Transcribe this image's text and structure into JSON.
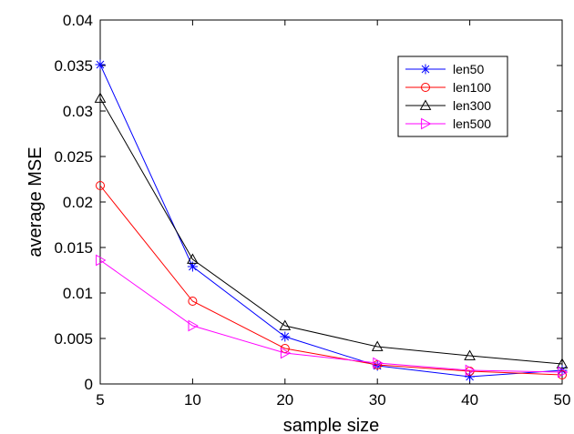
{
  "chart_data": {
    "type": "line",
    "xlabel": "sample size",
    "ylabel": "average MSE",
    "x": [
      "5",
      "10",
      "20",
      "30",
      "40",
      "50"
    ],
    "ylim": [
      0,
      0.04
    ],
    "yticks": [
      "0",
      "0.005",
      "0.01",
      "0.015",
      "0.02",
      "0.025",
      "0.03",
      "0.035",
      "0.04"
    ],
    "grid": false,
    "legend_position": "top-right",
    "series": [
      {
        "name": "len50",
        "color": "#0000ff",
        "marker": "asterisk",
        "values": [
          0.0351,
          0.0129,
          0.0052,
          0.002,
          0.0008,
          0.0015
        ]
      },
      {
        "name": "len100",
        "color": "#ff0000",
        "marker": "circle",
        "values": [
          0.0218,
          0.0091,
          0.0039,
          0.0021,
          0.0014,
          0.001
        ]
      },
      {
        "name": "len300",
        "color": "#000000",
        "marker": "triangle-up",
        "values": [
          0.0314,
          0.0137,
          0.0064,
          0.0041,
          0.0031,
          0.0022
        ]
      },
      {
        "name": "len500",
        "color": "#ff00ff",
        "marker": "triangle-right",
        "values": [
          0.0136,
          0.0064,
          0.0034,
          0.0023,
          0.0015,
          0.0013
        ]
      }
    ]
  }
}
